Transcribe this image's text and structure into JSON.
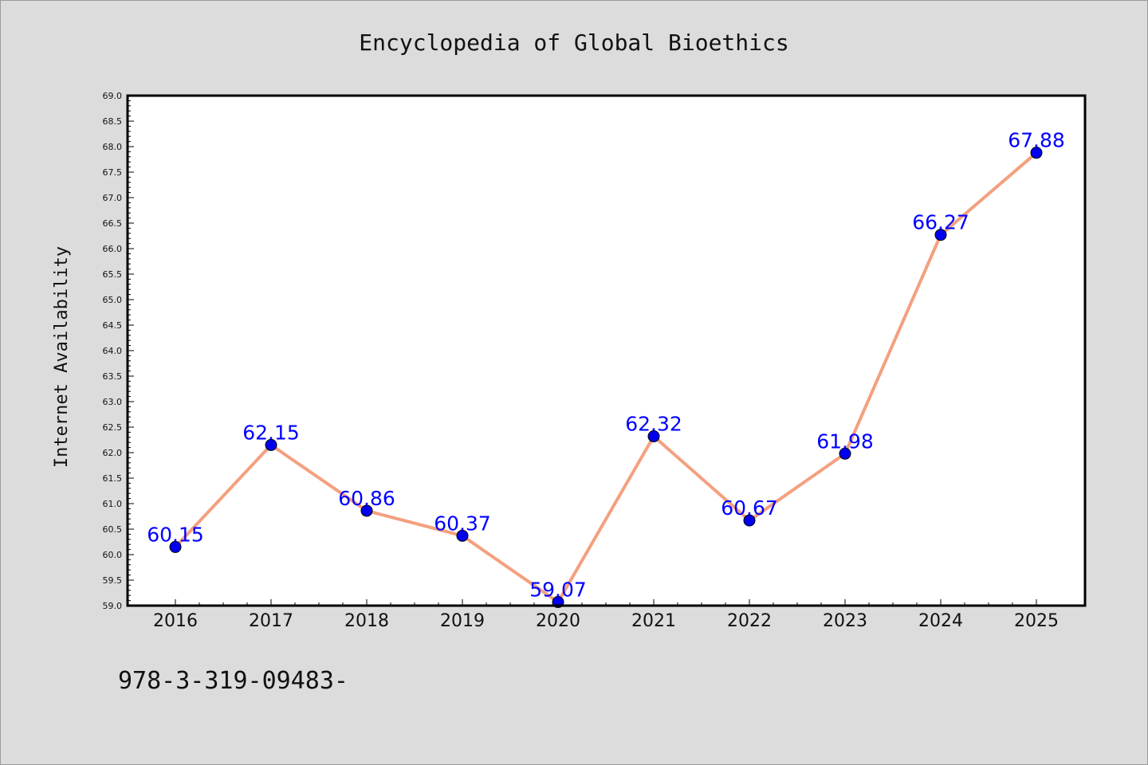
{
  "chart_data": {
    "type": "line",
    "title": "Encyclopedia of Global Bioethics",
    "xlabel": "",
    "ylabel": "Internet Availability",
    "categories": [
      "2016",
      "2017",
      "2018",
      "2019",
      "2020",
      "2021",
      "2022",
      "2023",
      "2024",
      "2025"
    ],
    "values": [
      60.15,
      62.15,
      60.86,
      60.37,
      59.07,
      62.32,
      60.67,
      61.98,
      66.27,
      67.88
    ],
    "data_labels": [
      "60.15",
      "62.15",
      "60.86",
      "60.37",
      "59.07",
      "62.32",
      "60.67",
      "61.98",
      "66.27",
      "67.88"
    ],
    "ylim": [
      59.0,
      69.0
    ],
    "y_ticks": [
      "59.0",
      "59.5",
      "60.0",
      "60.5",
      "61.0",
      "61.5",
      "62.0",
      "62.5",
      "63.0",
      "63.5",
      "64.0",
      "64.5",
      "65.0",
      "65.5",
      "66.0",
      "66.5",
      "67.0",
      "67.5",
      "68.0",
      "68.5",
      "69.0"
    ],
    "grid": false,
    "line_color": "#f4a07f",
    "marker_color": "#0000ee",
    "label_color": "#0000ff",
    "background_color": "#dcdcdc",
    "plot_background": "#ffffff"
  },
  "footer": {
    "text": "978-3-319-09483-"
  }
}
